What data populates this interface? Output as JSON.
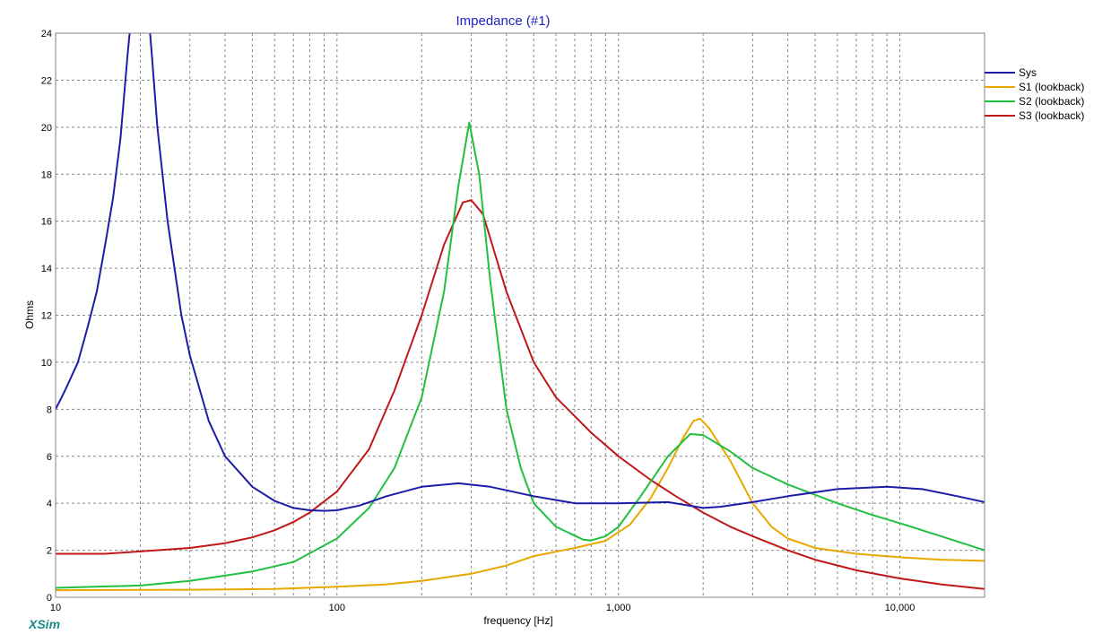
{
  "app": {
    "brand": "XSim",
    "brand_color": "#1a8a8a"
  },
  "chart_data": {
    "type": "line",
    "title": "Impedance (#1)",
    "title_color": "#1f1fbf",
    "xlabel": "frequency [Hz]",
    "ylabel": "Ohms",
    "xscale": "log",
    "xlim": [
      10,
      20000
    ],
    "ylim": [
      0,
      24
    ],
    "x_ticks": [
      10,
      100,
      1000,
      10000
    ],
    "x_tick_labels": [
      "10",
      "100",
      "1,000",
      "10,000"
    ],
    "y_ticks": [
      0,
      2,
      4,
      6,
      8,
      10,
      12,
      14,
      16,
      18,
      20,
      22,
      24
    ],
    "y_tick_labels": [
      "0",
      "2",
      "4",
      "6",
      "8",
      "10",
      "12",
      "14",
      "16",
      "18",
      "20",
      "22",
      "24"
    ],
    "grid": true,
    "legend_position": "right",
    "series": [
      {
        "name": "Sys",
        "color": "#1c1ca8",
        "points": [
          [
            10,
            8.0
          ],
          [
            10.5,
            8.5
          ],
          [
            11,
            9.0
          ],
          [
            12,
            10.0
          ],
          [
            13,
            11.5
          ],
          [
            14,
            13.0
          ],
          [
            15,
            15.0
          ],
          [
            16,
            17.0
          ],
          [
            17,
            19.5
          ],
          [
            18,
            23.0
          ],
          [
            18.5,
            24.5
          ],
          [
            21.5,
            24.5
          ],
          [
            22,
            23.0
          ],
          [
            23,
            20.0
          ],
          [
            25,
            16.0
          ],
          [
            28,
            12.0
          ],
          [
            30,
            10.3
          ],
          [
            35,
            7.5
          ],
          [
            40,
            6.0
          ],
          [
            50,
            4.7
          ],
          [
            60,
            4.1
          ],
          [
            70,
            3.8
          ],
          [
            80,
            3.7
          ],
          [
            90,
            3.68
          ],
          [
            100,
            3.7
          ],
          [
            120,
            3.9
          ],
          [
            150,
            4.3
          ],
          [
            200,
            4.7
          ],
          [
            270,
            4.85
          ],
          [
            350,
            4.7
          ],
          [
            500,
            4.3
          ],
          [
            700,
            4.0
          ],
          [
            1000,
            4.0
          ],
          [
            1500,
            4.05
          ],
          [
            2000,
            3.8
          ],
          [
            2300,
            3.85
          ],
          [
            3000,
            4.05
          ],
          [
            4000,
            4.3
          ],
          [
            6000,
            4.6
          ],
          [
            9000,
            4.7
          ],
          [
            12000,
            4.6
          ],
          [
            16000,
            4.3
          ],
          [
            20000,
            4.05
          ]
        ]
      },
      {
        "name": "S1 (lookback)",
        "color": "#e8a800",
        "points": [
          [
            10,
            0.3
          ],
          [
            30,
            0.32
          ],
          [
            60,
            0.35
          ],
          [
            100,
            0.45
          ],
          [
            150,
            0.55
          ],
          [
            200,
            0.7
          ],
          [
            300,
            1.0
          ],
          [
            400,
            1.35
          ],
          [
            500,
            1.75
          ],
          [
            700,
            2.1
          ],
          [
            900,
            2.4
          ],
          [
            1100,
            3.1
          ],
          [
            1300,
            4.2
          ],
          [
            1500,
            5.5
          ],
          [
            1700,
            6.8
          ],
          [
            1850,
            7.5
          ],
          [
            1950,
            7.6
          ],
          [
            2100,
            7.2
          ],
          [
            2500,
            5.8
          ],
          [
            3000,
            4.0
          ],
          [
            3500,
            3.0
          ],
          [
            4000,
            2.5
          ],
          [
            5000,
            2.1
          ],
          [
            7000,
            1.85
          ],
          [
            10000,
            1.7
          ],
          [
            14000,
            1.6
          ],
          [
            20000,
            1.55
          ]
        ]
      },
      {
        "name": "S2 (lookback)",
        "color": "#22c040",
        "points": [
          [
            10,
            0.4
          ],
          [
            20,
            0.5
          ],
          [
            30,
            0.7
          ],
          [
            50,
            1.1
          ],
          [
            70,
            1.5
          ],
          [
            100,
            2.5
          ],
          [
            130,
            3.8
          ],
          [
            160,
            5.5
          ],
          [
            200,
            8.5
          ],
          [
            240,
            13.0
          ],
          [
            270,
            17.5
          ],
          [
            295,
            20.2
          ],
          [
            320,
            18.0
          ],
          [
            350,
            13.5
          ],
          [
            400,
            8.0
          ],
          [
            450,
            5.5
          ],
          [
            500,
            4.0
          ],
          [
            600,
            3.0
          ],
          [
            750,
            2.45
          ],
          [
            800,
            2.42
          ],
          [
            900,
            2.6
          ],
          [
            1000,
            3.0
          ],
          [
            1200,
            4.3
          ],
          [
            1500,
            6.0
          ],
          [
            1800,
            6.95
          ],
          [
            2000,
            6.9
          ],
          [
            2500,
            6.2
          ],
          [
            3000,
            5.5
          ],
          [
            4000,
            4.8
          ],
          [
            6000,
            4.0
          ],
          [
            8000,
            3.5
          ],
          [
            10000,
            3.15
          ],
          [
            14000,
            2.6
          ],
          [
            20000,
            2.0
          ]
        ]
      },
      {
        "name": "S3 (lookback)",
        "color": "#c01818",
        "points": [
          [
            10,
            1.85
          ],
          [
            15,
            1.85
          ],
          [
            20,
            1.95
          ],
          [
            30,
            2.1
          ],
          [
            40,
            2.3
          ],
          [
            50,
            2.55
          ],
          [
            60,
            2.85
          ],
          [
            70,
            3.2
          ],
          [
            80,
            3.6
          ],
          [
            100,
            4.5
          ],
          [
            130,
            6.3
          ],
          [
            160,
            8.8
          ],
          [
            200,
            12.0
          ],
          [
            240,
            15.0
          ],
          [
            280,
            16.8
          ],
          [
            300,
            16.9
          ],
          [
            330,
            16.3
          ],
          [
            400,
            13.0
          ],
          [
            500,
            10.0
          ],
          [
            600,
            8.5
          ],
          [
            800,
            7.0
          ],
          [
            1000,
            6.0
          ],
          [
            1300,
            5.0
          ],
          [
            1600,
            4.3
          ],
          [
            2000,
            3.6
          ],
          [
            2500,
            3.0
          ],
          [
            3000,
            2.6
          ],
          [
            4000,
            2.0
          ],
          [
            5000,
            1.6
          ],
          [
            7000,
            1.15
          ],
          [
            10000,
            0.8
          ],
          [
            14000,
            0.55
          ],
          [
            20000,
            0.35
          ]
        ]
      }
    ]
  }
}
